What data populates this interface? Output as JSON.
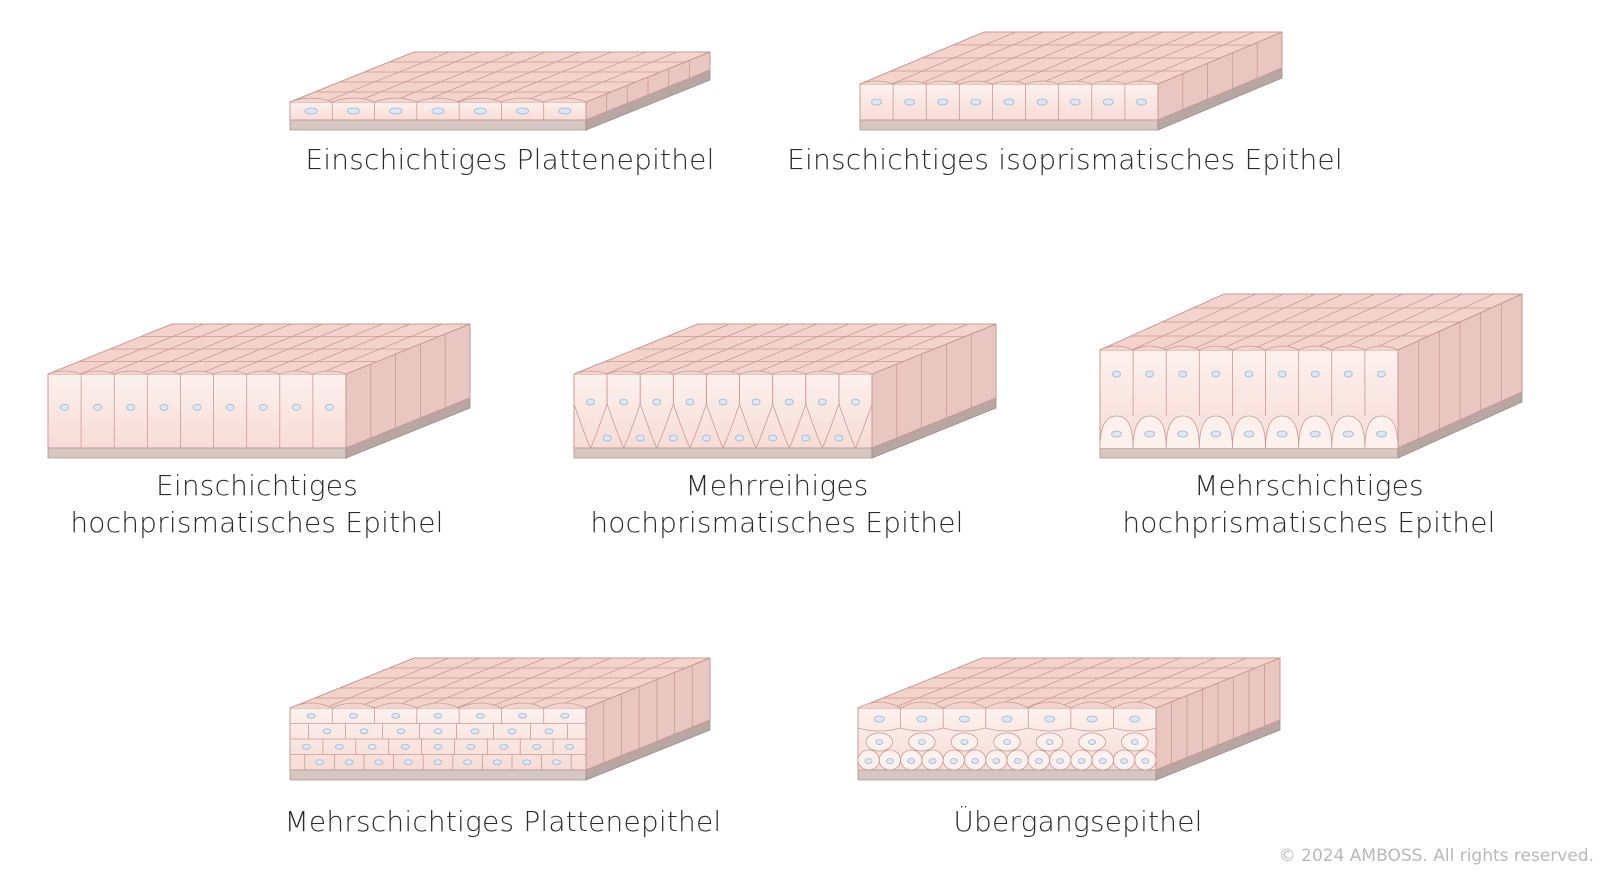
{
  "colors": {
    "cell_fill": "#f7dcd6",
    "cell_fill_light": "#fdf1ee",
    "cell_stroke": "#c99a93",
    "top_fill": "#f3d3cc",
    "side_fill": "#e9c6bf",
    "basement_front": "#d6c7c3",
    "basement_side": "#b7a6a2",
    "nucleus_fill": "#dbe8f5",
    "nucleus_stroke": "#9fb7d0",
    "text": "#2b2b2b",
    "copyright": "#b9b9b9"
  },
  "epithelia": [
    {
      "label_lines": [
        "Einschichtiges Plattenepithel"
      ],
      "illustration": "simple-squamous"
    },
    {
      "label_lines": [
        "Einschichtiges isoprismatisches Epithel"
      ],
      "illustration": "simple-cuboidal"
    },
    {
      "label_lines": [
        "Einschichtiges",
        "hochprismatisches Epithel"
      ],
      "illustration": "simple-columnar"
    },
    {
      "label_lines": [
        "Mehrreihiges",
        "hochprismatisches Epithel"
      ],
      "illustration": "pseudostratified-columnar"
    },
    {
      "label_lines": [
        "Mehrschichtiges",
        "hochprismatisches Epithel"
      ],
      "illustration": "stratified-columnar"
    },
    {
      "label_lines": [
        "Mehrschichtiges Plattenepithel"
      ],
      "illustration": "stratified-squamous"
    },
    {
      "label_lines": [
        "Übergangsepithel"
      ],
      "illustration": "transitional"
    }
  ],
  "copyright": "© 2024 AMBOSS. All rights reserved."
}
